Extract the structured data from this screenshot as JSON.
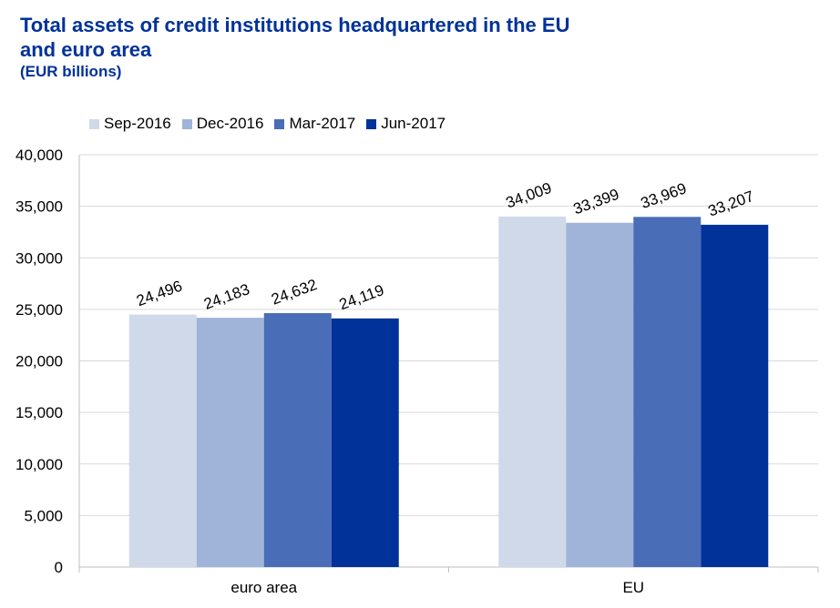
{
  "title_lines": [
    "Total assets of credit institutions headquartered in the EU",
    "and euro area"
  ],
  "subtitle": "(EUR billions)",
  "chart_data": {
    "type": "bar",
    "title": "Total assets of credit institutions headquartered in the EU and euro area",
    "subtitle": "(EUR billions)",
    "categories": [
      "euro area",
      "EU"
    ],
    "series": [
      {
        "name": "Sep-2016",
        "values": [
          24496,
          34009
        ],
        "labels": [
          "24,496",
          "34,009"
        ],
        "color": "#cfd9ea"
      },
      {
        "name": "Dec-2016",
        "values": [
          24183,
          33399
        ],
        "labels": [
          "24,183",
          "33,399"
        ],
        "color": "#a0b3d9"
      },
      {
        "name": "Mar-2017",
        "values": [
          24632,
          33969
        ],
        "labels": [
          "24,632",
          "33,969"
        ],
        "color": "#4a6db8"
      },
      {
        "name": "Jun-2017",
        "values": [
          24119,
          33207
        ],
        "labels": [
          "24,119",
          "33,207"
        ],
        "color": "#003299"
      }
    ],
    "ylim": [
      0,
      40000
    ],
    "yticks": [
      0,
      5000,
      10000,
      15000,
      20000,
      25000,
      30000,
      35000,
      40000
    ],
    "ytick_labels": [
      "0",
      "5,000",
      "10,000",
      "15,000",
      "20,000",
      "25,000",
      "30,000",
      "35,000",
      "40,000"
    ],
    "grid": true,
    "legend_position": "top"
  }
}
